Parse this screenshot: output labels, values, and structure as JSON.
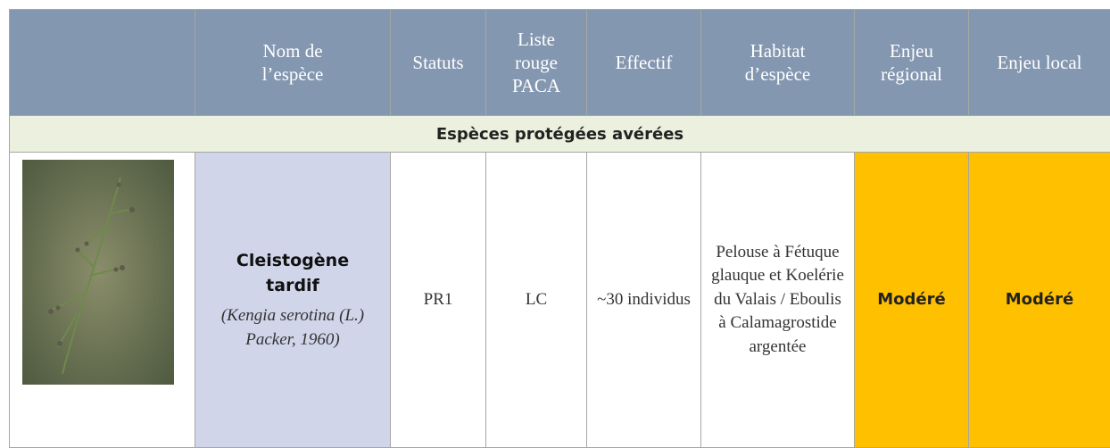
{
  "table": {
    "headers": [
      "Nom de l’espèce",
      "Statuts",
      "Liste rouge PACA",
      "Effectif",
      "Habitat d’espèce",
      "Enjeu régional",
      "Enjeu local"
    ],
    "section": "Espèces protégées avérées",
    "row": {
      "name": "Cleistogène tardif",
      "scientific_name": "(Kengia serotina (L.) Packer, 1960)",
      "status": "PR1",
      "red_list": "LC",
      "count": "~30 individus",
      "habitat": "Pelouse à Fétuque glauque  et Koelérie du Valais / Eboulis à Calamagrostide argentée",
      "regional": "Modéré",
      "local": "Modéré"
    }
  }
}
